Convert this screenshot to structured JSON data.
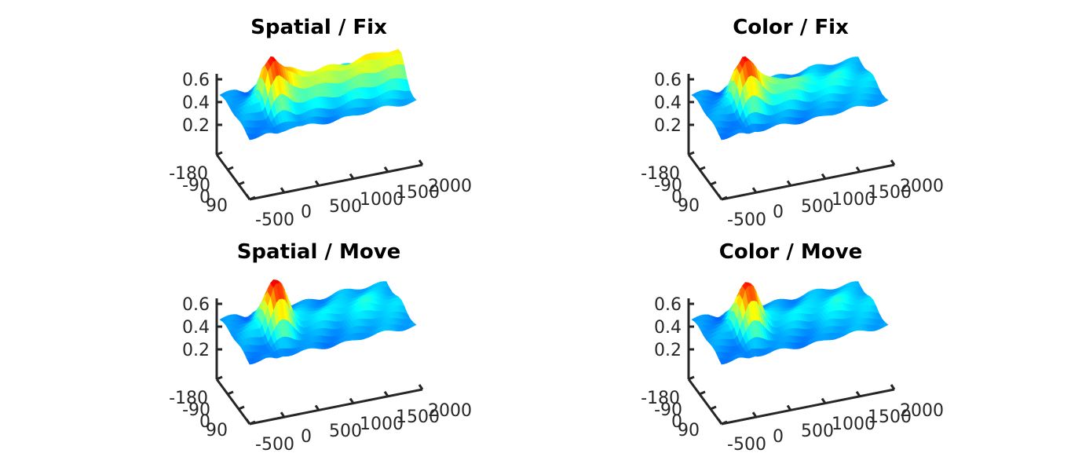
{
  "chart_data": [
    {
      "type": "surface",
      "title": "Spatial / Fix",
      "xlabel": "",
      "ylabel": "",
      "zlabel": "",
      "x_ticks": [
        "-500",
        "0",
        "500",
        "1000",
        "1500",
        "2000"
      ],
      "y_ticks": [
        "-180",
        "-90",
        "0",
        "90"
      ],
      "z_ticks": [
        "0.2",
        "0.4",
        "0.6"
      ],
      "xlim": [
        -500,
        2000
      ],
      "ylim": [
        -180,
        90
      ],
      "zlim": [
        0,
        0.6
      ],
      "colormap": "jet",
      "time_ms": [
        -500,
        -250,
        -100,
        0,
        100,
        200,
        300,
        400,
        500,
        750,
        1000,
        1250,
        1500,
        1750,
        2000
      ],
      "peak_value": [
        0.22,
        0.24,
        0.28,
        0.52,
        0.6,
        0.52,
        0.46,
        0.44,
        0.42,
        0.4,
        0.4,
        0.4,
        0.42,
        0.44,
        0.42
      ],
      "baseline_value": [
        0.2,
        0.2,
        0.18,
        0.2,
        0.22,
        0.22,
        0.2,
        0.2,
        0.2,
        0.2,
        0.2,
        0.22,
        0.22,
        0.22,
        0.22
      ]
    },
    {
      "type": "surface",
      "title": "Color / Fix",
      "xlabel": "",
      "ylabel": "",
      "zlabel": "",
      "x_ticks": [
        "-500",
        "0",
        "500",
        "1000",
        "1500",
        "2000"
      ],
      "y_ticks": [
        "-180",
        "-90",
        "0",
        "90"
      ],
      "z_ticks": [
        "0.2",
        "0.4",
        "0.6"
      ],
      "xlim": [
        -500,
        2000
      ],
      "ylim": [
        -180,
        90
      ],
      "zlim": [
        0,
        0.6
      ],
      "colormap": "jet",
      "time_ms": [
        -500,
        -250,
        -100,
        0,
        100,
        200,
        300,
        400,
        500,
        750,
        1000,
        1250,
        1500,
        1750,
        2000
      ],
      "peak_value": [
        0.22,
        0.22,
        0.26,
        0.5,
        0.6,
        0.54,
        0.44,
        0.38,
        0.36,
        0.34,
        0.3,
        0.28,
        0.28,
        0.26,
        0.24
      ],
      "baseline_value": [
        0.2,
        0.2,
        0.18,
        0.2,
        0.2,
        0.2,
        0.2,
        0.2,
        0.2,
        0.2,
        0.2,
        0.22,
        0.22,
        0.22,
        0.22
      ]
    },
    {
      "type": "surface",
      "title": "Spatial / Move",
      "xlabel": "",
      "ylabel": "",
      "zlabel": "",
      "x_ticks": [
        "-500",
        "0",
        "500",
        "1000",
        "1500",
        "2000"
      ],
      "y_ticks": [
        "-180",
        "-90",
        "0",
        "90"
      ],
      "z_ticks": [
        "0.2",
        "0.4",
        "0.6"
      ],
      "xlim": [
        -500,
        2000
      ],
      "ylim": [
        -180,
        90
      ],
      "zlim": [
        0,
        0.6
      ],
      "colormap": "jet",
      "time_ms": [
        -500,
        -250,
        -100,
        0,
        100,
        200,
        300,
        400,
        500,
        750,
        1000,
        1250,
        1500,
        1750,
        2000
      ],
      "peak_value": [
        0.22,
        0.24,
        0.26,
        0.44,
        0.6,
        0.58,
        0.44,
        0.3,
        0.26,
        0.26,
        0.25,
        0.26,
        0.28,
        0.26,
        0.24
      ],
      "baseline_value": [
        0.2,
        0.2,
        0.18,
        0.2,
        0.2,
        0.2,
        0.2,
        0.2,
        0.2,
        0.2,
        0.2,
        0.22,
        0.22,
        0.22,
        0.22
      ]
    },
    {
      "type": "surface",
      "title": "Color / Move",
      "xlabel": "",
      "ylabel": "",
      "zlabel": "",
      "x_ticks": [
        "-500",
        "0",
        "500",
        "1000",
        "1500",
        "2000"
      ],
      "y_ticks": [
        "-180",
        "-90",
        "0",
        "90"
      ],
      "z_ticks": [
        "0.2",
        "0.4",
        "0.6"
      ],
      "xlim": [
        -500,
        2000
      ],
      "ylim": [
        -180,
        90
      ],
      "zlim": [
        0,
        0.6
      ],
      "colormap": "jet",
      "time_ms": [
        -500,
        -250,
        -100,
        0,
        100,
        200,
        300,
        400,
        500,
        750,
        1000,
        1250,
        1500,
        1750,
        2000
      ],
      "peak_value": [
        0.22,
        0.22,
        0.24,
        0.42,
        0.58,
        0.56,
        0.42,
        0.3,
        0.26,
        0.26,
        0.25,
        0.26,
        0.28,
        0.26,
        0.24
      ],
      "baseline_value": [
        0.2,
        0.2,
        0.18,
        0.2,
        0.2,
        0.2,
        0.2,
        0.2,
        0.2,
        0.2,
        0.2,
        0.22,
        0.22,
        0.22,
        0.22
      ]
    }
  ]
}
